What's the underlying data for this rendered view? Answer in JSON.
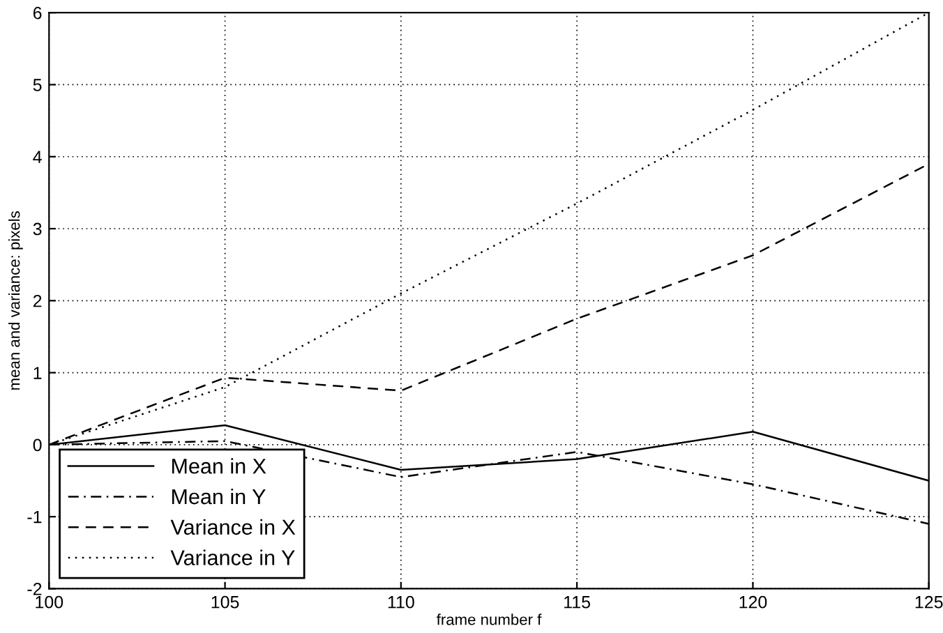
{
  "chart_data": {
    "type": "line",
    "xlabel": "frame number f",
    "ylabel": "mean and variance: pixels",
    "x": [
      100,
      105,
      110,
      115,
      120,
      125
    ],
    "series": [
      {
        "name": "Mean in X",
        "color": "#000000",
        "line_style": "solid",
        "values": [
          0,
          0.27,
          -0.35,
          -0.2,
          0.18,
          -0.5
        ]
      },
      {
        "name": "Mean in Y",
        "color": "#000000",
        "line_style": "dashdot",
        "values": [
          0,
          0.05,
          -0.45,
          -0.1,
          -0.55,
          -1.1
        ]
      },
      {
        "name": "Variance in X",
        "color": "#000000",
        "line_style": "dashed",
        "values": [
          0,
          0.93,
          0.75,
          1.75,
          2.63,
          3.9
        ]
      },
      {
        "name": "Variance in Y",
        "color": "#000000",
        "line_style": "dotted",
        "values": [
          0,
          0.8,
          2.1,
          3.35,
          4.65,
          6.0
        ]
      }
    ],
    "xlim": [
      100,
      125
    ],
    "xticks": [
      100,
      105,
      110,
      115,
      120,
      125
    ],
    "ylim": [
      -2,
      6
    ],
    "yticks": [
      -2,
      -1,
      0,
      1,
      2,
      3,
      4,
      5,
      6
    ],
    "grid": true,
    "legend": "bottom left",
    "marker": "none"
  }
}
